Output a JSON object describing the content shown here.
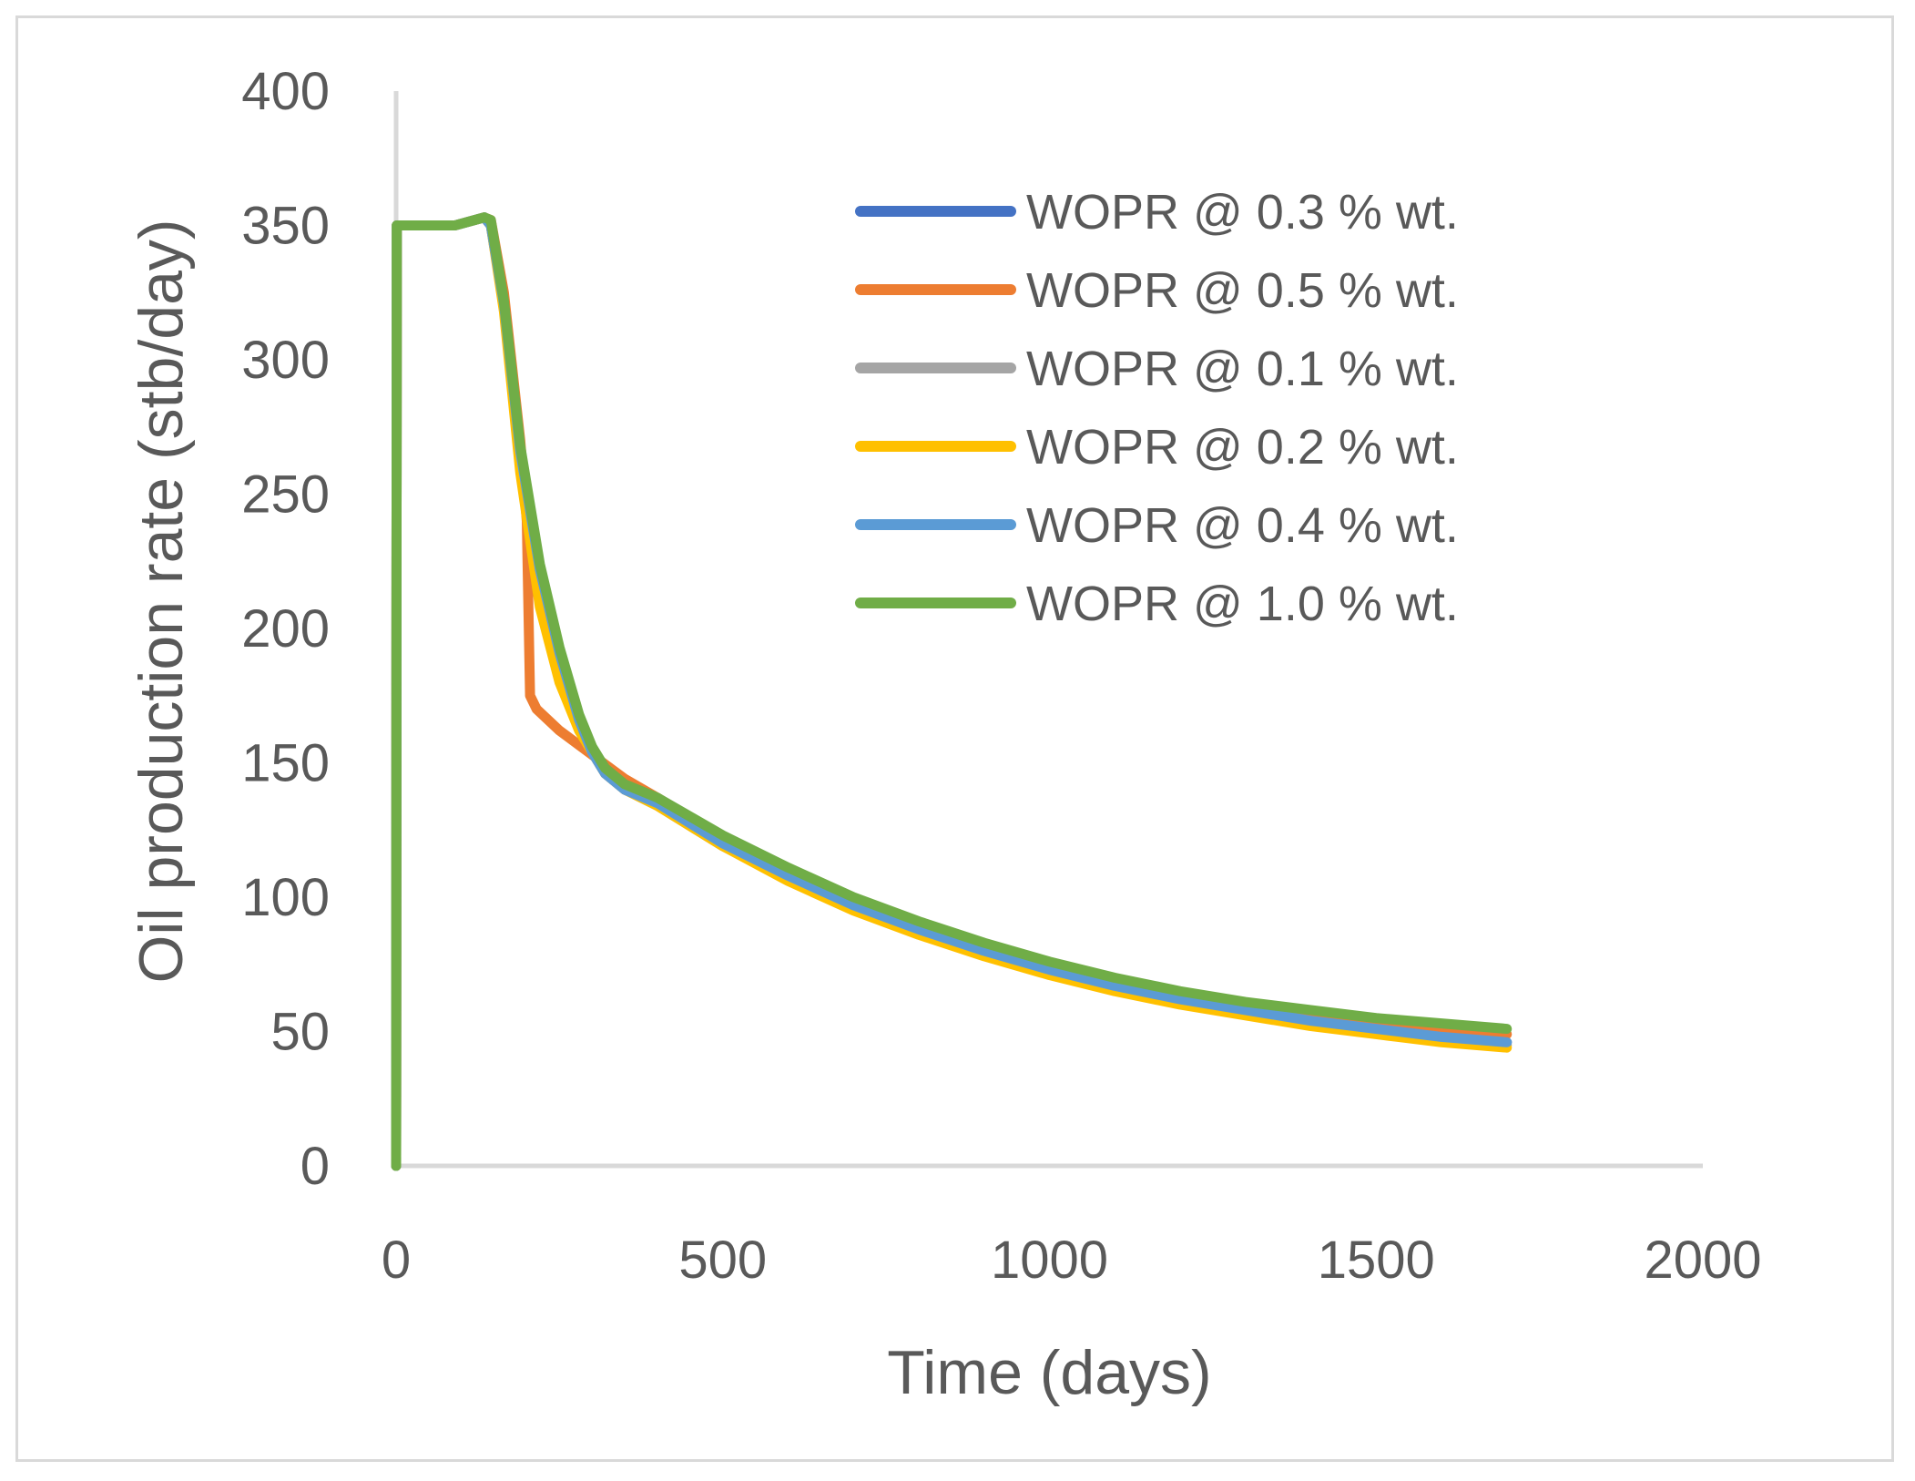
{
  "chart_data": {
    "type": "line",
    "title": "",
    "xlabel": "Time (days)",
    "ylabel": "Oil production rate (stb/day)",
    "xlim": [
      0,
      2000
    ],
    "ylim": [
      0,
      400
    ],
    "x_ticks": [
      0,
      500,
      1000,
      1500,
      2000
    ],
    "y_ticks": [
      0,
      50,
      100,
      150,
      200,
      250,
      300,
      350,
      400
    ],
    "grid": false,
    "legend_position": "top-right",
    "series": [
      {
        "name": "WOPR @ 0.3 % wt.",
        "color": "#4472c4",
        "points": [
          [
            0,
            0
          ],
          [
            1,
            350
          ],
          [
            90,
            350
          ],
          [
            135,
            353
          ],
          [
            145,
            350
          ],
          [
            165,
            320
          ],
          [
            190,
            265
          ],
          [
            220,
            220
          ],
          [
            250,
            190
          ],
          [
            280,
            165
          ],
          [
            300,
            154
          ],
          [
            320,
            146
          ],
          [
            350,
            140
          ],
          [
            400,
            135
          ],
          [
            500,
            120
          ],
          [
            600,
            108
          ],
          [
            700,
            97
          ],
          [
            800,
            88
          ],
          [
            900,
            80
          ],
          [
            1000,
            73
          ],
          [
            1100,
            67
          ],
          [
            1200,
            62
          ],
          [
            1300,
            58
          ],
          [
            1400,
            54
          ],
          [
            1500,
            51
          ],
          [
            1600,
            48
          ],
          [
            1700,
            46
          ]
        ]
      },
      {
        "name": "WOPR @ 0.5 % wt.",
        "color": "#ed7d31",
        "points": [
          [
            0,
            0
          ],
          [
            1,
            350
          ],
          [
            90,
            350
          ],
          [
            135,
            353
          ],
          [
            145,
            352
          ],
          [
            165,
            325
          ],
          [
            190,
            270
          ],
          [
            200,
            240
          ],
          [
            205,
            175
          ],
          [
            215,
            170
          ],
          [
            250,
            162
          ],
          [
            300,
            153
          ],
          [
            350,
            144
          ],
          [
            400,
            137
          ],
          [
            500,
            122
          ],
          [
            600,
            110
          ],
          [
            700,
            99
          ],
          [
            800,
            90
          ],
          [
            900,
            82
          ],
          [
            1000,
            75
          ],
          [
            1100,
            69
          ],
          [
            1200,
            64
          ],
          [
            1300,
            60
          ],
          [
            1400,
            56
          ],
          [
            1500,
            53
          ],
          [
            1600,
            51
          ],
          [
            1700,
            49
          ]
        ]
      },
      {
        "name": "WOPR @ 0.1 % wt.",
        "color": "#a5a5a5",
        "points": [
          [
            0,
            0
          ],
          [
            1,
            350
          ],
          [
            90,
            350
          ],
          [
            135,
            353
          ],
          [
            145,
            350
          ],
          [
            165,
            320
          ],
          [
            190,
            262
          ],
          [
            220,
            215
          ],
          [
            250,
            185
          ],
          [
            280,
            163
          ],
          [
            300,
            154
          ],
          [
            320,
            146
          ],
          [
            350,
            140
          ],
          [
            400,
            134
          ],
          [
            500,
            119
          ],
          [
            600,
            107
          ],
          [
            700,
            96
          ],
          [
            800,
            87
          ],
          [
            900,
            79
          ],
          [
            1000,
            72
          ],
          [
            1100,
            66
          ],
          [
            1200,
            61
          ],
          [
            1300,
            57
          ],
          [
            1400,
            53
          ],
          [
            1500,
            50
          ],
          [
            1600,
            47
          ],
          [
            1700,
            45
          ]
        ]
      },
      {
        "name": "WOPR @ 0.2 % wt.",
        "color": "#ffc000",
        "points": [
          [
            0,
            0
          ],
          [
            1,
            350
          ],
          [
            90,
            350
          ],
          [
            135,
            353
          ],
          [
            145,
            350
          ],
          [
            165,
            318
          ],
          [
            190,
            258
          ],
          [
            220,
            208
          ],
          [
            250,
            180
          ],
          [
            280,
            162
          ],
          [
            300,
            154
          ],
          [
            320,
            146
          ],
          [
            350,
            140
          ],
          [
            400,
            134
          ],
          [
            500,
            119
          ],
          [
            600,
            106
          ],
          [
            700,
            95
          ],
          [
            800,
            86
          ],
          [
            900,
            78
          ],
          [
            1000,
            71
          ],
          [
            1100,
            65
          ],
          [
            1200,
            60
          ],
          [
            1300,
            56
          ],
          [
            1400,
            52
          ],
          [
            1500,
            49
          ],
          [
            1600,
            46
          ],
          [
            1700,
            44
          ]
        ]
      },
      {
        "name": "WOPR @ 0.4 % wt.",
        "color": "#5b9bd5",
        "points": [
          [
            0,
            0
          ],
          [
            1,
            350
          ],
          [
            90,
            350
          ],
          [
            135,
            353
          ],
          [
            145,
            350
          ],
          [
            165,
            321
          ],
          [
            190,
            266
          ],
          [
            220,
            222
          ],
          [
            250,
            191
          ],
          [
            280,
            166
          ],
          [
            300,
            154
          ],
          [
            320,
            146
          ],
          [
            350,
            140
          ],
          [
            400,
            135
          ],
          [
            500,
            120
          ],
          [
            600,
            108
          ],
          [
            700,
            97
          ],
          [
            800,
            88
          ],
          [
            900,
            80
          ],
          [
            1000,
            73
          ],
          [
            1100,
            67
          ],
          [
            1200,
            62
          ],
          [
            1300,
            58
          ],
          [
            1400,
            54
          ],
          [
            1500,
            51
          ],
          [
            1600,
            48
          ],
          [
            1700,
            46
          ]
        ]
      },
      {
        "name": "WOPR @ 1.0 % wt.",
        "color": "#70ad47",
        "points": [
          [
            0,
            0
          ],
          [
            1,
            350
          ],
          [
            90,
            350
          ],
          [
            135,
            353
          ],
          [
            145,
            352
          ],
          [
            165,
            322
          ],
          [
            190,
            268
          ],
          [
            220,
            224
          ],
          [
            250,
            193
          ],
          [
            280,
            168
          ],
          [
            300,
            156
          ],
          [
            320,
            148
          ],
          [
            350,
            142
          ],
          [
            400,
            137
          ],
          [
            500,
            123
          ],
          [
            600,
            111
          ],
          [
            700,
            100
          ],
          [
            800,
            91
          ],
          [
            900,
            83
          ],
          [
            1000,
            76
          ],
          [
            1100,
            70
          ],
          [
            1200,
            65
          ],
          [
            1300,
            61
          ],
          [
            1400,
            58
          ],
          [
            1500,
            55
          ],
          [
            1600,
            53
          ],
          [
            1700,
            51
          ]
        ]
      }
    ]
  }
}
